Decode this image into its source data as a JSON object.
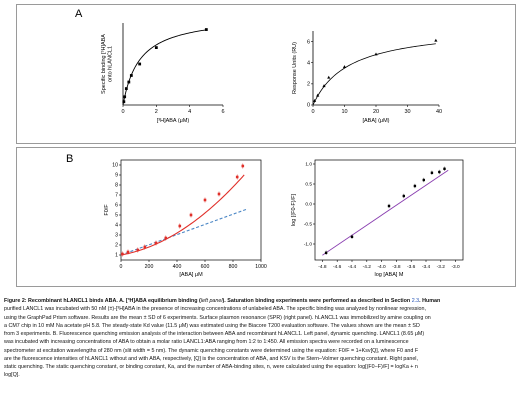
{
  "panels": {
    "a_label": "A",
    "b_label": "B"
  },
  "colors": {
    "axis": "#000000",
    "red_fit": "#e0302a",
    "blue_dash": "#4a86c5",
    "purple_fit": "#8a3fb0",
    "ref_link": "#1f4fb4"
  },
  "chart_data": [
    {
      "type": "scatter",
      "panel": "A-left",
      "xlabel": "[³H]ABA (μM)",
      "ylabel": "Specific binding [³H]ABA onto hLANCL1",
      "xlim": [
        0,
        6
      ],
      "ylim": [
        0,
        50
      ],
      "x_ticks": [
        0,
        2,
        4,
        6
      ],
      "x_tick_labels": [
        "0",
        "2",
        "4",
        "6"
      ],
      "points": [
        {
          "x": 0.05,
          "y": 2
        },
        {
          "x": 0.1,
          "y": 5
        },
        {
          "x": 0.2,
          "y": 10
        },
        {
          "x": 0.35,
          "y": 14
        },
        {
          "x": 0.5,
          "y": 18
        },
        {
          "x": 1.0,
          "y": 25
        },
        {
          "x": 2.0,
          "y": 35
        },
        {
          "x": 5.0,
          "y": 46
        }
      ],
      "fit": {
        "model": "one-site",
        "bmax": 55,
        "kd": 1.0
      }
    },
    {
      "type": "scatter",
      "panel": "A-right",
      "xlabel": "[ABA] (μM)",
      "ylabel": "Response Units (RU)",
      "xlim": [
        0,
        40
      ],
      "ylim": [
        0,
        7
      ],
      "x_ticks": [
        0,
        10,
        20,
        30,
        40
      ],
      "x_tick_labels": [
        "0",
        "10",
        "20",
        "30",
        "40"
      ],
      "y_ticks": [
        0,
        2,
        4,
        6
      ],
      "y_tick_labels": [
        "0",
        "2",
        "4",
        "6"
      ],
      "points": [
        {
          "x": 0.5,
          "y": 0.4
        },
        {
          "x": 1.5,
          "y": 0.9
        },
        {
          "x": 3.5,
          "y": 1.8
        },
        {
          "x": 5,
          "y": 2.6
        },
        {
          "x": 10,
          "y": 3.6
        },
        {
          "x": 20,
          "y": 4.8
        },
        {
          "x": 39,
          "y": 6.1
        }
      ],
      "fit": {
        "model": "one-site",
        "bmax": 7.5,
        "kd": 11.5
      }
    },
    {
      "type": "scatter",
      "panel": "B-left",
      "xlabel": "[ABA] μM",
      "ylabel": "F0/F",
      "xlim": [
        0,
        1000
      ],
      "ylim": [
        0.5,
        10.5
      ],
      "x_ticks": [
        0,
        200,
        400,
        600,
        800,
        1000
      ],
      "x_tick_labels": [
        "0",
        "200",
        "400",
        "600",
        "800",
        "1000"
      ],
      "y_ticks": [
        1,
        2,
        3,
        4,
        5,
        6,
        7,
        8,
        9,
        10
      ],
      "y_tick_labels": [
        "1",
        "2",
        "3",
        "4",
        "5",
        "6",
        "7",
        "8",
        "9",
        "10"
      ],
      "points": [
        {
          "x": 10,
          "y": 1.1
        },
        {
          "x": 50,
          "y": 1.3
        },
        {
          "x": 120,
          "y": 1.5
        },
        {
          "x": 170,
          "y": 1.8
        },
        {
          "x": 250,
          "y": 2.2
        },
        {
          "x": 320,
          "y": 2.7
        },
        {
          "x": 420,
          "y": 3.9
        },
        {
          "x": 500,
          "y": 5.0
        },
        {
          "x": 600,
          "y": 6.5
        },
        {
          "x": 700,
          "y": 7.1
        },
        {
          "x": 830,
          "y": 8.8
        },
        {
          "x": 870,
          "y": 9.9
        }
      ],
      "fit_red": {
        "model": "quadratic",
        "a": 1.0,
        "b": 0.0025,
        "c": 7.5e-06
      },
      "fit_blue_dashed": {
        "model": "linear",
        "intercept": 1.0,
        "slope": 0.0051
      }
    },
    {
      "type": "scatter",
      "panel": "B-right",
      "xlabel": "log [ABA] M",
      "ylabel": "log [(F0-F)/F]",
      "xlim": [
        -4.9,
        -2.9
      ],
      "ylim": [
        -1.4,
        1.1
      ],
      "x_ticks": [
        -4.8,
        -4.6,
        -4.4,
        -4.2,
        -4.0,
        -3.8,
        -3.6,
        -3.4,
        -3.2,
        -3.0
      ],
      "x_tick_labels": [
        "-4.8",
        "-4.6",
        "-4.4",
        "-4.2",
        "-4.0",
        "-3.8",
        "-3.6",
        "-3.4",
        "-3.2",
        "-3.0"
      ],
      "y_ticks": [
        -1.0,
        -0.5,
        0.0,
        0.5,
        1.0
      ],
      "y_tick_labels": [
        "-1.0",
        "-0.5",
        "0.0",
        "0.5",
        "1.0"
      ],
      "points": [
        {
          "x": -4.75,
          "y": -1.22
        },
        {
          "x": -4.4,
          "y": -0.82
        },
        {
          "x": -3.9,
          "y": -0.05
        },
        {
          "x": -3.7,
          "y": 0.2
        },
        {
          "x": -3.55,
          "y": 0.45
        },
        {
          "x": -3.43,
          "y": 0.6
        },
        {
          "x": -3.32,
          "y": 0.78
        },
        {
          "x": -3.22,
          "y": 0.8
        },
        {
          "x": -3.15,
          "y": 0.88
        }
      ],
      "fit": {
        "model": "linear",
        "slope": 1.25,
        "intercept": 4.72
      }
    }
  ],
  "caption": {
    "line1_title": "Figure 2: Recombinant hLANCL1 binds ABA. A. [³H]ABA equilibrium binding (",
    "line1_left": "left panel",
    "line1_rest": "). Saturation binding experiments were performed as described in Section ",
    "line1_ref": "2.3",
    "line1_end": ". Human",
    "line2": "purified LANCL1 was incubated with 50 nM (±)-[³H]ABA in the presence of increasing concentrations of unlabeled ABA. The specific binding was analyzed by nonlinear regression,",
    "line3": "using the GraphPad Prism software. Results are the mean ± SD of 6 experiments. Surface plasmon resonance (SPR) (right panel). hLANCL1 was immobilized by amine coupling on",
    "line4": "a CM7 chip in 10 mM Na acetate pH 5.8. The steady-state Kd value (11.5 μM) was estimated using the Biacore T200 evaluation software. The values shown are the mean ± SD",
    "line5": "from 3 experiments. B. Fluorescence quenching emission analysis of the interaction between ABA and recombinant hLANCL1. Left panel, dynamic quenching. LANCL1 (8.65 μM)",
    "line6": "was incubated with increasing concentrations of ABA to obtain a molar ratio LANCL1:ABA ranging from 1:2 to 1:450. All emission spectra were recorded on a luminescence",
    "line7": "spectrometer at excitation wavelengths of 280 nm (slit width = 5 nm). The dynamic quenching constants were determined using the equation: F0/F = 1+Ksv[Q], where F0 and F",
    "line8": "are the fluorescence intensities of hLANCL1 without and with ABA, respectively, [Q] is the concentration of ABA, and KSV is the Stern–Volmer quenching constant. Right panel,",
    "line9": "static quenching. The static quenching constant, or binding constant, Ka, and the number of ABA-binding sites, n, were calculated using the equation: log[(F0−F)/F] = logKa + n",
    "line10": "log[Q]."
  }
}
